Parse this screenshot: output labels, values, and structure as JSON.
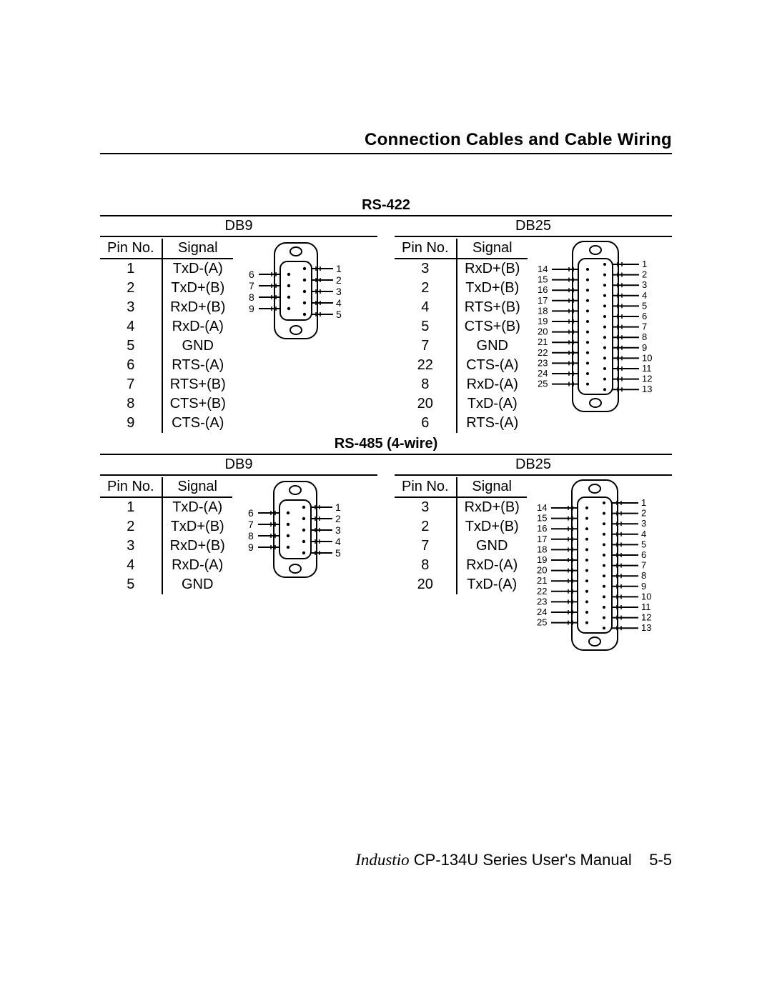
{
  "header": {
    "title": "Connection Cables and Cable Wiring"
  },
  "footer": {
    "brand": "Industio",
    "product": "CP-134U",
    "series": "Series",
    "rest": "User's Manual",
    "page": "5-5"
  },
  "colors": {
    "line": "#000000",
    "bg": "#ffffff"
  },
  "sections": [
    {
      "title": "RS-422",
      "db9": {
        "label": "DB9",
        "headers": [
          "Pin No.",
          "Signal"
        ],
        "rows": [
          [
            "1",
            "TxD-(A)"
          ],
          [
            "2",
            "TxD+(B)"
          ],
          [
            "3",
            "RxD+(B)"
          ],
          [
            "4",
            "RxD-(A)"
          ],
          [
            "5",
            "GND"
          ],
          [
            "6",
            "RTS-(A)"
          ],
          [
            "7",
            "RTS+(B)"
          ],
          [
            "8",
            "CTS+(B)"
          ],
          [
            "9",
            "CTS-(A)"
          ]
        ]
      },
      "db25": {
        "label": "DB25",
        "headers": [
          "Pin No.",
          "Signal"
        ],
        "rows": [
          [
            "3",
            "RxD+(B)"
          ],
          [
            "2",
            "TxD+(B)"
          ],
          [
            "4",
            "RTS+(B)"
          ],
          [
            "5",
            "CTS+(B)"
          ],
          [
            "7",
            "GND"
          ],
          [
            "22",
            "CTS-(A)"
          ],
          [
            "8",
            "RxD-(A)"
          ],
          [
            "20",
            "TxD-(A)"
          ],
          [
            "6",
            "RTS-(A)"
          ]
        ]
      }
    },
    {
      "title": "RS-485 (4-wire)",
      "db9": {
        "label": "DB9",
        "headers": [
          "Pin No.",
          "Signal"
        ],
        "rows": [
          [
            "1",
            "TxD-(A)"
          ],
          [
            "2",
            "TxD+(B)"
          ],
          [
            "3",
            "RxD+(B)"
          ],
          [
            "4",
            "RxD-(A)"
          ],
          [
            "5",
            "GND"
          ]
        ]
      },
      "db25": {
        "label": "DB25",
        "headers": [
          "Pin No.",
          "Signal"
        ],
        "rows": [
          [
            "3",
            "RxD+(B)"
          ],
          [
            "2",
            "TxD+(B)"
          ],
          [
            "7",
            "GND"
          ],
          [
            "8",
            "RxD-(A)"
          ],
          [
            "20",
            "TxD-(A)"
          ]
        ]
      }
    }
  ],
  "db9_diagram": {
    "left_labels": [
      "6",
      "7",
      "8",
      "9"
    ],
    "right_labels": [
      "1",
      "2",
      "3",
      "4",
      "5"
    ],
    "stroke": "#000000",
    "stroke_width": 2,
    "font_size": 14
  },
  "db25_diagram": {
    "left_labels": [
      "14",
      "15",
      "16",
      "17",
      "18",
      "19",
      "20",
      "21",
      "22",
      "23",
      "24",
      "25"
    ],
    "right_labels": [
      "1",
      "2",
      "3",
      "4",
      "5",
      "6",
      "7",
      "8",
      "9",
      "10",
      "11",
      "12",
      "13"
    ],
    "stroke": "#000000",
    "stroke_width": 2,
    "font_size": 13
  }
}
